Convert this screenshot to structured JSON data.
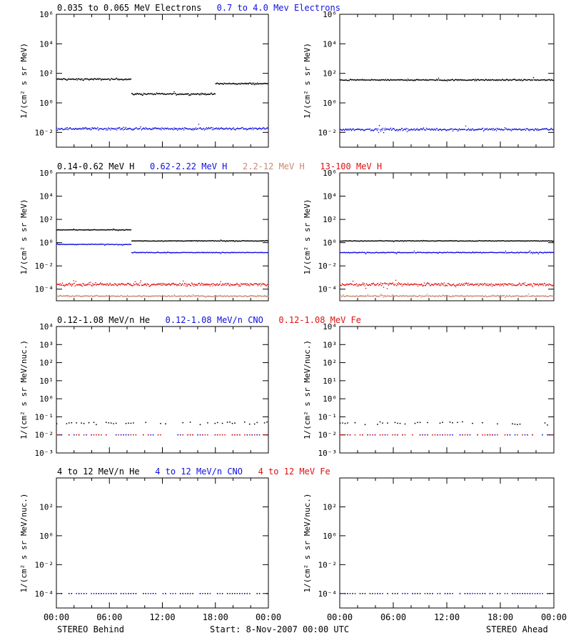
{
  "colors": {
    "black": "#000000",
    "blue": "#1010e0",
    "tan": "#c88a70",
    "red": "#e01010"
  },
  "time_labels": [
    "00:00",
    "06:00",
    "12:00",
    "18:00",
    "00:00"
  ],
  "footer": {
    "left": "STEREO Behind",
    "center": "Start:  8-Nov-2007 00:00 UTC",
    "right": "STEREO Ahead"
  },
  "rows": [
    {
      "ylabel": "1/(cm² s sr MeV)",
      "yscale": "log",
      "yrange_exp": [
        -3,
        6
      ],
      "tick_exps": [
        -2,
        0,
        2,
        4,
        6
      ],
      "legend": [
        {
          "text": "0.035 to 0.065 MeV Electrons",
          "color": "black"
        },
        {
          "text": "0.7 to 4.0 Mev Electrons",
          "color": "blue"
        }
      ]
    },
    {
      "ylabel": "1/(cm² s sr MeV)",
      "yscale": "log",
      "yrange_exp": [
        -5,
        6
      ],
      "tick_exps": [
        -4,
        -2,
        0,
        2,
        4,
        6
      ],
      "legend": [
        {
          "text": "0.14-0.62 MeV H",
          "color": "black"
        },
        {
          "text": "0.62-2.22 MeV H",
          "color": "blue"
        },
        {
          "text": "2.2-12 MeV H",
          "color": "tan"
        },
        {
          "text": "13-100 MeV H",
          "color": "red"
        }
      ]
    },
    {
      "ylabel": "1/(cm² s sr MeV/nuc.)",
      "yscale": "log",
      "yrange_exp": [
        -3,
        4
      ],
      "tick_exps": [
        -3,
        -2,
        -1,
        0,
        1,
        2,
        3,
        4
      ],
      "legend": [
        {
          "text": "0.12-1.08 MeV/n He",
          "color": "black"
        },
        {
          "text": "0.12-1.08 MeV/n CNO",
          "color": "blue"
        },
        {
          "text": "0.12-1.08 MeV Fe",
          "color": "red"
        }
      ]
    },
    {
      "ylabel": "1/(cm² s sr MeV/nuc.)",
      "yscale": "log",
      "yrange_exp": [
        -5,
        4
      ],
      "tick_exps": [
        -4,
        -2,
        0,
        2
      ],
      "legend": [
        {
          "text": "4 to 12 MeV/n He",
          "color": "black"
        },
        {
          "text": "4 to 12 MeV/n CNO",
          "color": "blue"
        },
        {
          "text": "4 to 12 MeV Fe",
          "color": "red"
        }
      ]
    }
  ],
  "chart_data": [
    {
      "type": "scatter",
      "spacecraft": "STEREO Behind",
      "row": 0,
      "xrange_hours": [
        0,
        24
      ],
      "series": [
        {
          "name": "0.035 to 0.065 MeV Electrons",
          "color": "black",
          "segments": [
            [
              0,
              8.5,
              1.6
            ],
            [
              8.5,
              18,
              0.6
            ],
            [
              18,
              24,
              1.3
            ]
          ],
          "scatter": 0.08
        },
        {
          "name": "0.7 to 4.0 Mev Electrons",
          "color": "blue",
          "segments": [
            [
              0,
              24,
              -1.75
            ]
          ],
          "scatter": 0.12
        }
      ]
    },
    {
      "type": "scatter",
      "spacecraft": "STEREO Ahead",
      "row": 0,
      "xrange_hours": [
        0,
        24
      ],
      "series": [
        {
          "name": "0.035 to 0.065 MeV Electrons",
          "color": "black",
          "segments": [
            [
              0,
              24,
              1.55
            ]
          ],
          "scatter": 0.06
        },
        {
          "name": "0.7 to 4.0 Mev Electrons",
          "color": "blue",
          "segments": [
            [
              0,
              24,
              -1.8
            ]
          ],
          "scatter": 0.12
        }
      ]
    },
    {
      "type": "scatter",
      "spacecraft": "STEREO Behind",
      "row": 1,
      "xrange_hours": [
        0,
        24
      ],
      "series": [
        {
          "name": "0.14-0.62 MeV H",
          "color": "black",
          "segments": [
            [
              0,
              8.5,
              1.1
            ],
            [
              8.5,
              24,
              0.15
            ]
          ],
          "scatter": 0.04
        },
        {
          "name": "0.62-2.22 MeV H",
          "color": "blue",
          "segments": [
            [
              0,
              8.5,
              -0.15
            ],
            [
              8.5,
              24,
              -0.85
            ]
          ],
          "scatter": 0.04
        },
        {
          "name": "2.2-12 MeV H",
          "color": "tan",
          "segments": [
            [
              0,
              24,
              -4.6
            ]
          ],
          "scatter": 0.08
        },
        {
          "name": "13-100 MeV H",
          "color": "red",
          "segments": [
            [
              0,
              24,
              -3.6
            ]
          ],
          "scatter": 0.2
        }
      ]
    },
    {
      "type": "scatter",
      "spacecraft": "STEREO Ahead",
      "row": 1,
      "xrange_hours": [
        0,
        24
      ],
      "series": [
        {
          "name": "0.14-0.62 MeV H",
          "color": "black",
          "segments": [
            [
              0,
              24,
              0.15
            ]
          ],
          "scatter": 0.04
        },
        {
          "name": "0.62-2.22 MeV H",
          "color": "blue",
          "segments": [
            [
              0,
              24,
              -0.85
            ]
          ],
          "scatter": 0.05
        },
        {
          "name": "2.2-12 MeV H",
          "color": "tan",
          "segments": [
            [
              0,
              24,
              -4.6
            ]
          ],
          "scatter": 0.08
        },
        {
          "name": "13-100 MeV H",
          "color": "red",
          "segments": [
            [
              0,
              24,
              -3.6
            ]
          ],
          "scatter": 0.2
        }
      ]
    },
    {
      "type": "scatter",
      "spacecraft": "STEREO Behind",
      "row": 2,
      "xrange_hours": [
        0,
        24
      ],
      "series": [
        {
          "name": "0.12-1.08 MeV/n He",
          "color": "black",
          "segments": [
            [
              0,
              24,
              -1.35
            ]
          ],
          "scatter": 0.12,
          "sparse": true
        },
        {
          "name": "0.12-1.08 MeV/n CNO",
          "color": "blue",
          "segments": [
            [
              0,
              24,
              -2.0
            ]
          ],
          "scatter": 0.0,
          "sparse": true
        },
        {
          "name": "0.12-1.08 MeV Fe",
          "color": "red",
          "segments": [
            [
              0,
              24,
              -2.0
            ]
          ],
          "scatter": 0.0,
          "sparse": true
        }
      ]
    },
    {
      "type": "scatter",
      "spacecraft": "STEREO Ahead",
      "row": 2,
      "xrange_hours": [
        0,
        24
      ],
      "series": [
        {
          "name": "0.12-1.08 MeV/n He",
          "color": "black",
          "segments": [
            [
              0,
              24,
              -1.35
            ]
          ],
          "scatter": 0.12,
          "sparse": true
        },
        {
          "name": "0.12-1.08 MeV/n CNO",
          "color": "blue",
          "segments": [
            [
              0,
              24,
              -2.0
            ]
          ],
          "scatter": 0.0,
          "sparse": true
        },
        {
          "name": "0.12-1.08 MeV Fe",
          "color": "red",
          "segments": [
            [
              0,
              24,
              -2.0
            ]
          ],
          "scatter": 0.0,
          "sparse": true
        }
      ]
    },
    {
      "type": "scatter",
      "spacecraft": "STEREO Behind",
      "row": 3,
      "xrange_hours": [
        0,
        24
      ],
      "series": [
        {
          "name": "4 to 12 MeV/n He",
          "color": "black",
          "segments": [
            [
              0,
              24,
              -4.0
            ]
          ],
          "scatter": 0.0,
          "sparse": true
        },
        {
          "name": "4 to 12 MeV/n CNO",
          "color": "blue",
          "segments": [
            [
              0,
              24,
              -4.0
            ]
          ],
          "scatter": 0.0,
          "sparse": true
        }
      ]
    },
    {
      "type": "scatter",
      "spacecraft": "STEREO Ahead",
      "row": 3,
      "xrange_hours": [
        0,
        24
      ],
      "series": [
        {
          "name": "4 to 12 MeV/n He",
          "color": "black",
          "segments": [
            [
              0,
              24,
              -4.0
            ]
          ],
          "scatter": 0.0,
          "sparse": true
        },
        {
          "name": "4 to 12 MeV/n CNO",
          "color": "blue",
          "segments": [
            [
              0,
              24,
              -4.0
            ]
          ],
          "scatter": 0.0,
          "sparse": true
        }
      ]
    }
  ]
}
